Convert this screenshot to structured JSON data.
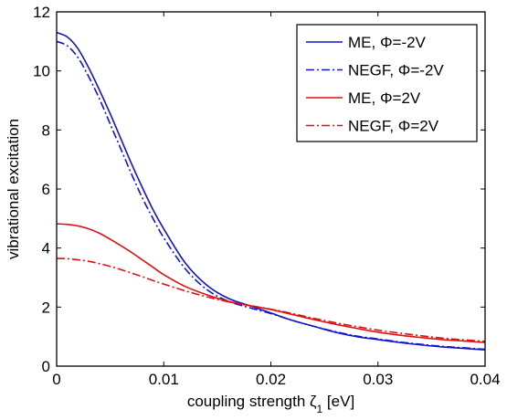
{
  "chart_data": {
    "type": "line",
    "xlabel": "coupling strength ζ",
    "xlabel_sub": "1",
    "xlabel_unit": " [eV]",
    "ylabel": "vibrational excitation",
    "xlim": [
      0,
      0.04
    ],
    "ylim": [
      0,
      12
    ],
    "xticks": [
      0,
      0.01,
      0.02,
      0.03,
      0.04
    ],
    "xtick_labels": [
      "0",
      "0.01",
      "0.02",
      "0.03",
      "0.04"
    ],
    "yticks": [
      0,
      2,
      4,
      6,
      8,
      10,
      12
    ],
    "ytick_labels": [
      "0",
      "2",
      "4",
      "6",
      "8",
      "10",
      "12"
    ],
    "grid": false,
    "legend_position": "top-right",
    "series": [
      {
        "name": "ME, Φ=-2V",
        "color": "#1515c8",
        "style": "solid",
        "x": [
          0,
          0.001,
          0.002,
          0.003,
          0.004,
          0.005,
          0.006,
          0.007,
          0.008,
          0.009,
          0.01,
          0.012,
          0.014,
          0.016,
          0.018,
          0.02,
          0.022,
          0.024,
          0.026,
          0.028,
          0.03,
          0.032,
          0.034,
          0.036,
          0.038,
          0.04
        ],
        "y": [
          11.3,
          11.15,
          10.75,
          10.1,
          9.35,
          8.55,
          7.7,
          6.85,
          6.05,
          5.3,
          4.65,
          3.5,
          2.75,
          2.3,
          2.05,
          1.8,
          1.55,
          1.35,
          1.15,
          1.0,
          0.9,
          0.8,
          0.72,
          0.65,
          0.6,
          0.55
        ]
      },
      {
        "name": "NEGF, Φ=-2V",
        "color": "#1515c8",
        "style": "dashdot",
        "x": [
          0,
          0.001,
          0.002,
          0.003,
          0.004,
          0.005,
          0.006,
          0.007,
          0.008,
          0.009,
          0.01,
          0.012,
          0.014,
          0.016,
          0.018,
          0.02,
          0.022,
          0.024,
          0.026,
          0.028,
          0.03,
          0.032,
          0.034,
          0.036,
          0.038,
          0.04
        ],
        "y": [
          11.0,
          10.85,
          10.45,
          9.8,
          9.05,
          8.2,
          7.35,
          6.5,
          5.7,
          5.0,
          4.35,
          3.3,
          2.6,
          2.2,
          1.98,
          1.78,
          1.55,
          1.35,
          1.17,
          1.02,
          0.92,
          0.82,
          0.74,
          0.67,
          0.62,
          0.57
        ]
      },
      {
        "name": "ME, Φ=2V",
        "color": "#dd1111",
        "style": "solid",
        "x": [
          0,
          0.001,
          0.002,
          0.003,
          0.004,
          0.005,
          0.006,
          0.007,
          0.008,
          0.009,
          0.01,
          0.012,
          0.014,
          0.016,
          0.018,
          0.02,
          0.022,
          0.024,
          0.026,
          0.028,
          0.03,
          0.032,
          0.034,
          0.036,
          0.038,
          0.04
        ],
        "y": [
          4.82,
          4.8,
          4.75,
          4.65,
          4.5,
          4.3,
          4.08,
          3.85,
          3.6,
          3.35,
          3.1,
          2.7,
          2.42,
          2.2,
          2.05,
          1.92,
          1.75,
          1.58,
          1.42,
          1.28,
          1.15,
          1.05,
          0.97,
          0.9,
          0.85,
          0.8
        ]
      },
      {
        "name": "NEGF, Φ=2V",
        "color": "#dd1111",
        "style": "dashdot",
        "x": [
          0,
          0.001,
          0.002,
          0.003,
          0.004,
          0.005,
          0.006,
          0.007,
          0.008,
          0.009,
          0.01,
          0.012,
          0.014,
          0.016,
          0.018,
          0.02,
          0.022,
          0.024,
          0.026,
          0.028,
          0.03,
          0.032,
          0.034,
          0.036,
          0.038,
          0.04
        ],
        "y": [
          3.65,
          3.64,
          3.6,
          3.55,
          3.47,
          3.38,
          3.27,
          3.15,
          3.03,
          2.9,
          2.78,
          2.55,
          2.35,
          2.18,
          2.05,
          1.93,
          1.78,
          1.62,
          1.47,
          1.34,
          1.22,
          1.12,
          1.03,
          0.95,
          0.89,
          0.84
        ]
      }
    ]
  }
}
